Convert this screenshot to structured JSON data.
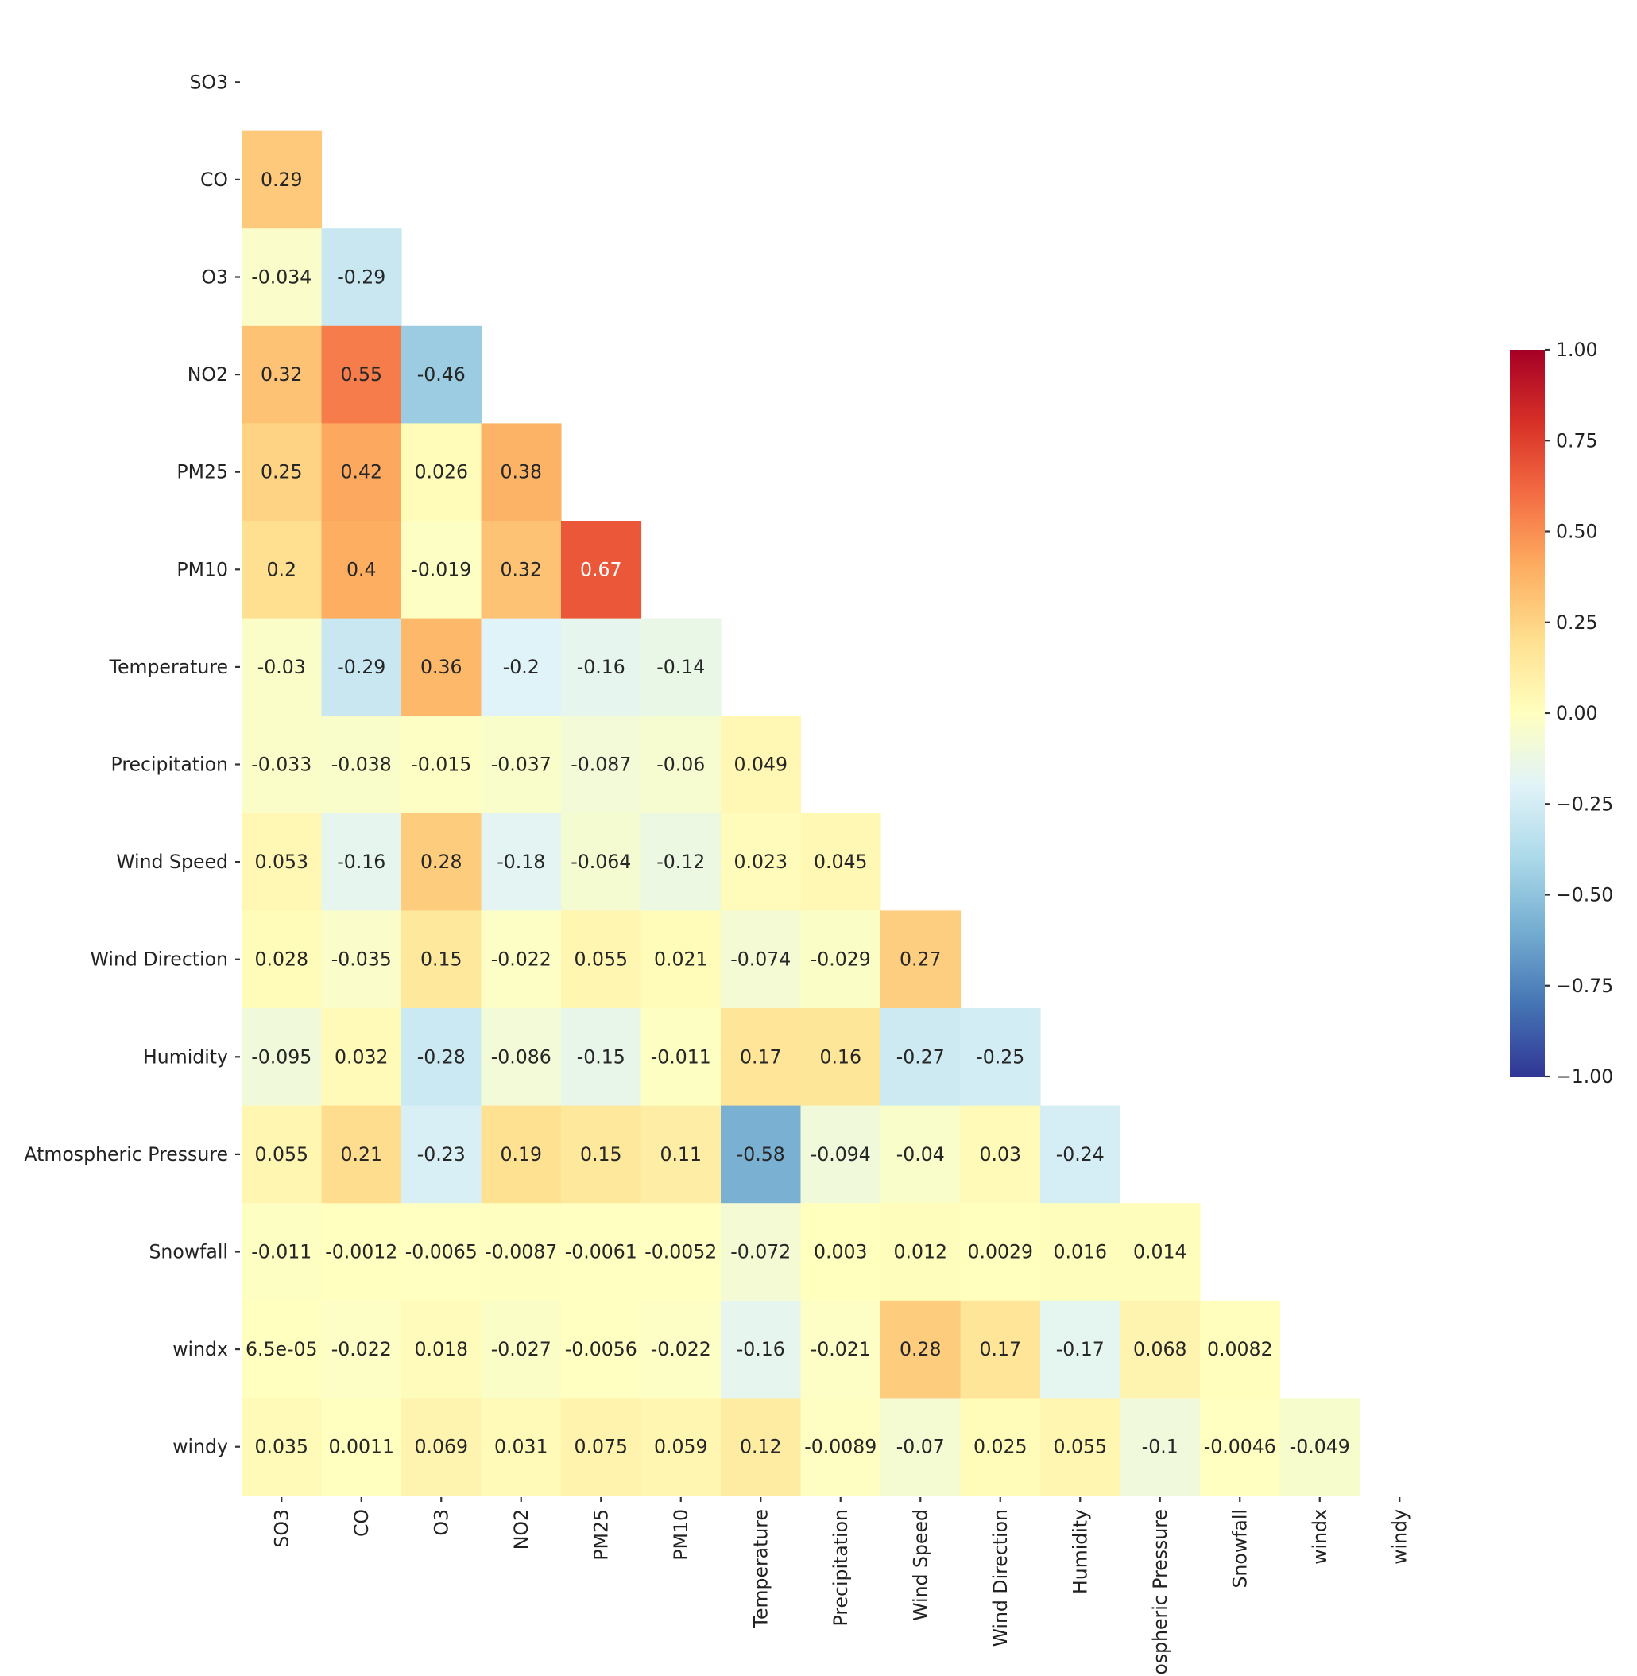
{
  "chart_data": {
    "type": "heatmap",
    "title": "",
    "xlabel": "",
    "ylabel": "",
    "variables": [
      "SO3",
      "CO",
      "O3",
      "NO2",
      "PM25",
      "PM10",
      "Temperature",
      "Precipitation",
      "Wind Speed",
      "Wind Direction",
      "Humidity",
      "Atmospheric Pressure",
      "Snowfall",
      "windx",
      "windy"
    ],
    "mask": "upper-triangle-including-diagonal",
    "colormap": "RdYlBu_r",
    "vmin": -1.0,
    "vmax": 1.0,
    "rows": [
      [],
      [
        {
          "v": 0.29,
          "label": "0.29"
        }
      ],
      [
        {
          "v": -0.034,
          "label": "-0.034"
        },
        {
          "v": -0.29,
          "label": "-0.29"
        }
      ],
      [
        {
          "v": 0.32,
          "label": "0.32"
        },
        {
          "v": 0.55,
          "label": "0.55"
        },
        {
          "v": -0.46,
          "label": "-0.46"
        }
      ],
      [
        {
          "v": 0.25,
          "label": "0.25"
        },
        {
          "v": 0.42,
          "label": "0.42"
        },
        {
          "v": 0.026,
          "label": "0.026"
        },
        {
          "v": 0.38,
          "label": "0.38"
        }
      ],
      [
        {
          "v": 0.2,
          "label": "0.2"
        },
        {
          "v": 0.4,
          "label": "0.4"
        },
        {
          "v": -0.019,
          "label": "-0.019"
        },
        {
          "v": 0.32,
          "label": "0.32"
        },
        {
          "v": 0.67,
          "label": "0.67"
        }
      ],
      [
        {
          "v": -0.03,
          "label": "-0.03"
        },
        {
          "v": -0.29,
          "label": "-0.29"
        },
        {
          "v": 0.36,
          "label": "0.36"
        },
        {
          "v": -0.2,
          "label": "-0.2"
        },
        {
          "v": -0.16,
          "label": "-0.16"
        },
        {
          "v": -0.14,
          "label": "-0.14"
        }
      ],
      [
        {
          "v": -0.033,
          "label": "-0.033"
        },
        {
          "v": -0.038,
          "label": "-0.038"
        },
        {
          "v": -0.015,
          "label": "-0.015"
        },
        {
          "v": -0.037,
          "label": "-0.037"
        },
        {
          "v": -0.087,
          "label": "-0.087"
        },
        {
          "v": -0.06,
          "label": "-0.06"
        },
        {
          "v": 0.049,
          "label": "0.049"
        }
      ],
      [
        {
          "v": 0.053,
          "label": "0.053"
        },
        {
          "v": -0.16,
          "label": "-0.16"
        },
        {
          "v": 0.28,
          "label": "0.28"
        },
        {
          "v": -0.18,
          "label": "-0.18"
        },
        {
          "v": -0.064,
          "label": "-0.064"
        },
        {
          "v": -0.12,
          "label": "-0.12"
        },
        {
          "v": 0.023,
          "label": "0.023"
        },
        {
          "v": 0.045,
          "label": "0.045"
        }
      ],
      [
        {
          "v": 0.028,
          "label": "0.028"
        },
        {
          "v": -0.035,
          "label": "-0.035"
        },
        {
          "v": 0.15,
          "label": "0.15"
        },
        {
          "v": -0.022,
          "label": "-0.022"
        },
        {
          "v": 0.055,
          "label": "0.055"
        },
        {
          "v": 0.021,
          "label": "0.021"
        },
        {
          "v": -0.074,
          "label": "-0.074"
        },
        {
          "v": -0.029,
          "label": "-0.029"
        },
        {
          "v": 0.27,
          "label": "0.27"
        }
      ],
      [
        {
          "v": -0.095,
          "label": "-0.095"
        },
        {
          "v": 0.032,
          "label": "0.032"
        },
        {
          "v": -0.28,
          "label": "-0.28"
        },
        {
          "v": -0.086,
          "label": "-0.086"
        },
        {
          "v": -0.15,
          "label": "-0.15"
        },
        {
          "v": -0.011,
          "label": "-0.011"
        },
        {
          "v": 0.17,
          "label": "0.17"
        },
        {
          "v": 0.16,
          "label": "0.16"
        },
        {
          "v": -0.27,
          "label": "-0.27"
        },
        {
          "v": -0.25,
          "label": "-0.25"
        }
      ],
      [
        {
          "v": 0.055,
          "label": "0.055"
        },
        {
          "v": 0.21,
          "label": "0.21"
        },
        {
          "v": -0.23,
          "label": "-0.23"
        },
        {
          "v": 0.19,
          "label": "0.19"
        },
        {
          "v": 0.15,
          "label": "0.15"
        },
        {
          "v": 0.11,
          "label": "0.11"
        },
        {
          "v": -0.58,
          "label": "-0.58"
        },
        {
          "v": -0.094,
          "label": "-0.094"
        },
        {
          "v": -0.04,
          "label": "-0.04"
        },
        {
          "v": 0.03,
          "label": "0.03"
        },
        {
          "v": -0.24,
          "label": "-0.24"
        }
      ],
      [
        {
          "v": -0.011,
          "label": "-0.011"
        },
        {
          "v": -0.0012,
          "label": "-0.0012"
        },
        {
          "v": -0.0065,
          "label": "-0.0065"
        },
        {
          "v": -0.0087,
          "label": "-0.0087"
        },
        {
          "v": -0.0061,
          "label": "-0.0061"
        },
        {
          "v": -0.0052,
          "label": "-0.0052"
        },
        {
          "v": -0.072,
          "label": "-0.072"
        },
        {
          "v": 0.003,
          "label": "0.003"
        },
        {
          "v": 0.012,
          "label": "0.012"
        },
        {
          "v": 0.0029,
          "label": "0.0029"
        },
        {
          "v": 0.016,
          "label": "0.016"
        },
        {
          "v": 0.014,
          "label": "0.014"
        }
      ],
      [
        {
          "v": 6.5e-05,
          "label": "6.5e-05"
        },
        {
          "v": -0.022,
          "label": "-0.022"
        },
        {
          "v": 0.018,
          "label": "0.018"
        },
        {
          "v": -0.027,
          "label": "-0.027"
        },
        {
          "v": -0.0056,
          "label": "-0.0056"
        },
        {
          "v": -0.022,
          "label": "-0.022"
        },
        {
          "v": -0.16,
          "label": "-0.16"
        },
        {
          "v": -0.021,
          "label": "-0.021"
        },
        {
          "v": 0.28,
          "label": "0.28"
        },
        {
          "v": 0.17,
          "label": "0.17"
        },
        {
          "v": -0.17,
          "label": "-0.17"
        },
        {
          "v": 0.068,
          "label": "0.068"
        },
        {
          "v": 0.0082,
          "label": "0.0082"
        }
      ],
      [
        {
          "v": 0.035,
          "label": "0.035"
        },
        {
          "v": 0.0011,
          "label": "0.0011"
        },
        {
          "v": 0.069,
          "label": "0.069"
        },
        {
          "v": 0.031,
          "label": "0.031"
        },
        {
          "v": 0.075,
          "label": "0.075"
        },
        {
          "v": 0.059,
          "label": "0.059"
        },
        {
          "v": 0.12,
          "label": "0.12"
        },
        {
          "v": -0.0089,
          "label": "-0.0089"
        },
        {
          "v": -0.07,
          "label": "-0.07"
        },
        {
          "v": 0.025,
          "label": "0.025"
        },
        {
          "v": 0.055,
          "label": "0.055"
        },
        {
          "v": -0.1,
          "label": "-0.1"
        },
        {
          "v": -0.0046,
          "label": "-0.0046"
        },
        {
          "v": -0.049,
          "label": "-0.049"
        }
      ]
    ],
    "colorbar": {
      "ticks": [
        1.0,
        0.75,
        0.5,
        0.25,
        0.0,
        -0.25,
        -0.5,
        -0.75,
        -1.0
      ],
      "tick_labels": [
        "1.00",
        "0.75",
        "0.50",
        "0.25",
        "0.00",
        "−0.25",
        "−0.50",
        "−0.75",
        "−1.00"
      ]
    }
  }
}
